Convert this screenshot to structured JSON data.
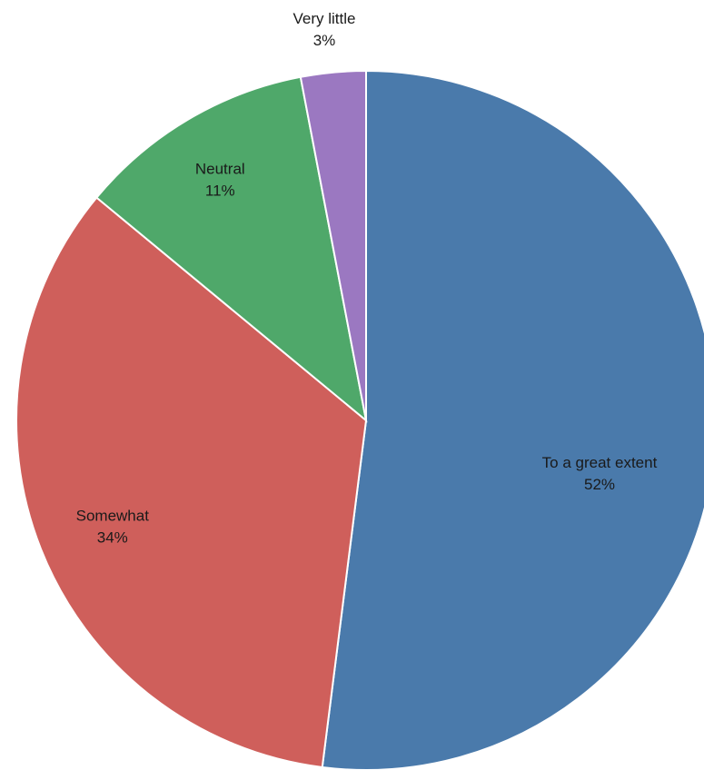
{
  "chart_data": {
    "type": "pie",
    "title": "",
    "slices": [
      {
        "label": "To a great extent",
        "value": 52,
        "value_label": "52%",
        "color": "#4a7aab"
      },
      {
        "label": "Somewhat",
        "value": 34,
        "value_label": "34%",
        "color": "#cf5f5b"
      },
      {
        "label": "Neutral",
        "value": 11,
        "value_label": "11%",
        "color": "#4fa86a"
      },
      {
        "label": "Very little",
        "value": 3,
        "value_label": "3%",
        "color": "#9b78c1"
      }
    ],
    "start_angle_deg": 0,
    "direction": "clockwise",
    "legend": "none"
  }
}
